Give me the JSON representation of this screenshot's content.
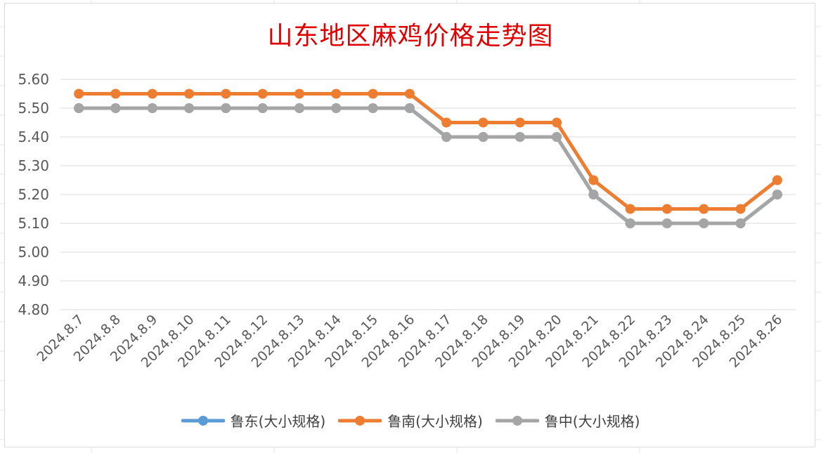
{
  "chart_data": {
    "type": "line",
    "title": "山东地区麻鸡价格走势图",
    "categories": [
      "2024.8.7",
      "2024.8.8",
      "2024.8.9",
      "2024.8.10",
      "2024.8.11",
      "2024.8.12",
      "2024.8.13",
      "2024.8.14",
      "2024.8.15",
      "2024.8.16",
      "2024.8.17",
      "2024.8.18",
      "2024.8.19",
      "2024.8.20",
      "2024.8.21",
      "2024.8.22",
      "2024.8.23",
      "2024.8.24",
      "2024.8.25",
      "2024.8.26"
    ],
    "ylim": [
      4.8,
      5.6
    ],
    "yticks": [
      "5.60",
      "5.50",
      "5.40",
      "5.30",
      "5.20",
      "5.10",
      "5.00",
      "4.90",
      "4.80"
    ],
    "grid": true,
    "legend": "bottom",
    "series": [
      {
        "name": "鲁东(大小规格)",
        "color": "#5b9bd5",
        "values": [
          5.5,
          5.5,
          5.5,
          5.5,
          5.5,
          5.5,
          5.5,
          5.5,
          5.5,
          5.5,
          5.4,
          5.4,
          5.4,
          5.4,
          5.2,
          5.1,
          5.1,
          5.1,
          5.1,
          5.2
        ]
      },
      {
        "name": "鲁南(大小规格)",
        "color": "#ed7d31",
        "values": [
          5.55,
          5.55,
          5.55,
          5.55,
          5.55,
          5.55,
          5.55,
          5.55,
          5.55,
          5.55,
          5.45,
          5.45,
          5.45,
          5.45,
          5.25,
          5.15,
          5.15,
          5.15,
          5.15,
          5.25
        ]
      },
      {
        "name": "鲁中(大小规格)",
        "color": "#a5a5a5",
        "values": [
          5.5,
          5.5,
          5.5,
          5.5,
          5.5,
          5.5,
          5.5,
          5.5,
          5.5,
          5.5,
          5.4,
          5.4,
          5.4,
          5.4,
          5.2,
          5.1,
          5.1,
          5.1,
          5.1,
          5.2
        ]
      }
    ]
  }
}
